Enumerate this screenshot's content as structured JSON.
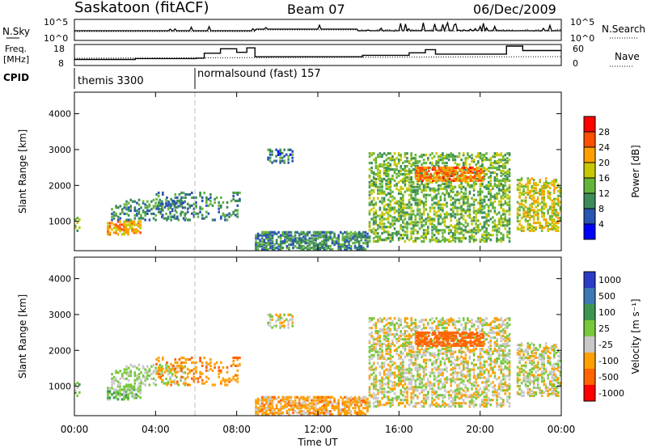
{
  "header": {
    "title": "Saskatoon (fitACF)",
    "beam": "Beam 07",
    "date": "06/Dec/2009"
  },
  "nsky_panel": {
    "label": "N.Sky",
    "ytick_top": "10^5",
    "ytick_bottom": "10^0",
    "right_ytick_top": "10^5",
    "right_ytick_bottom": "10^0",
    "right_label": "N.Search"
  },
  "freq_panel": {
    "label_line1": "Freq.",
    "label_line2": "[MHz]",
    "ytick_top": "18",
    "ytick_bottom": "8",
    "right_ytick_top": "60",
    "right_ytick_bottom": "0",
    "right_label": "Nave",
    "freq_steps": [
      {
        "t": 0.0,
        "v": 10.5
      },
      {
        "t": 3.0,
        "v": 11.0
      },
      {
        "t": 6.0,
        "v": 11.2
      },
      {
        "t": 6.4,
        "v": 14.0
      },
      {
        "t": 7.2,
        "v": 16.5
      },
      {
        "t": 8.0,
        "v": 14.5
      },
      {
        "t": 8.5,
        "v": 17.0
      },
      {
        "t": 8.9,
        "v": 12.0
      },
      {
        "t": 14.2,
        "v": 12.8
      },
      {
        "t": 16.5,
        "v": 14.2
      },
      {
        "t": 17.3,
        "v": 16.0
      },
      {
        "t": 17.8,
        "v": 13.5
      },
      {
        "t": 21.3,
        "v": 18.0
      },
      {
        "t": 22.1,
        "v": 15.5
      },
      {
        "t": 24.0,
        "v": 15.5
      }
    ]
  },
  "cpid": {
    "label": "CPID",
    "programs": [
      {
        "name": "themis 3300",
        "start": 0.0
      },
      {
        "name": "normalsound (fast) 157",
        "start": 6.0
      }
    ]
  },
  "power_panel": {
    "ylabel": "Slant Range [km]",
    "yticks": [
      "1000",
      "2000",
      "3000",
      "4000"
    ],
    "colorbar_label": "Power [dB]",
    "colorbar_ticks": [
      "28",
      "24",
      "20",
      "16",
      "12",
      "8",
      "4"
    ],
    "colors": [
      "#0000ff",
      "#2a55b0",
      "#3c8c5a",
      "#64b43c",
      "#c8c800",
      "#ffa000",
      "#ff5000",
      "#ff0000"
    ]
  },
  "velocity_panel": {
    "ylabel": "Slant Range [km]",
    "yticks": [
      "1000",
      "2000",
      "3000",
      "4000"
    ],
    "colorbar_label": "Velocity [m s⁻¹]",
    "colorbar_ticks": [
      "1000",
      "500",
      "100",
      "25",
      "-25",
      "-100",
      "-500",
      "-1000"
    ],
    "colors": [
      "#2a3cc8",
      "#3c78b4",
      "#3c9650",
      "#78c83c",
      "#c8c8c8",
      "#ffa000",
      "#ff6400",
      "#ff0000"
    ]
  },
  "chart_data": {
    "type": "heatmap",
    "xlabel": "Time UT",
    "xticks": [
      "00:00",
      "04:00",
      "08:00",
      "12:00",
      "16:00",
      "20:00",
      "00:00"
    ],
    "xlim_hours": [
      0,
      24
    ],
    "ylim_km": [
      180,
      4600
    ],
    "scatter_regions": [
      {
        "t0": 0.0,
        "t1": 0.3,
        "r0": 700,
        "r1": 1100,
        "density": 0.4,
        "power": 14,
        "vel": 60
      },
      {
        "t0": 1.6,
        "t1": 3.3,
        "r0": 600,
        "r1": 1000,
        "density": 0.55,
        "power": 22,
        "vel": 60
      },
      {
        "t0": 1.8,
        "t1": 5.5,
        "r0": 1000,
        "r1": 1600,
        "density": 0.3,
        "power": 10,
        "vel": 40
      },
      {
        "t0": 4.0,
        "t1": 8.2,
        "r0": 1000,
        "r1": 1800,
        "density": 0.22,
        "power": 9,
        "vel": -80
      },
      {
        "t0": 9.5,
        "t1": 10.8,
        "r0": 2600,
        "r1": 3000,
        "density": 0.4,
        "power": 8,
        "vel": 0
      },
      {
        "t0": 8.9,
        "t1": 14.5,
        "r0": 180,
        "r1": 700,
        "density": 0.6,
        "power": 10,
        "vel": -60
      },
      {
        "t0": 14.5,
        "t1": 21.5,
        "r0": 400,
        "r1": 2900,
        "density": 0.4,
        "power": 14,
        "vel": 0
      },
      {
        "t0": 16.8,
        "t1": 20.2,
        "r0": 2100,
        "r1": 2500,
        "density": 0.55,
        "power": 24,
        "vel": -300
      },
      {
        "t0": 21.8,
        "t1": 24.0,
        "r0": 700,
        "r1": 2200,
        "density": 0.45,
        "power": 18,
        "vel": 10
      }
    ]
  }
}
